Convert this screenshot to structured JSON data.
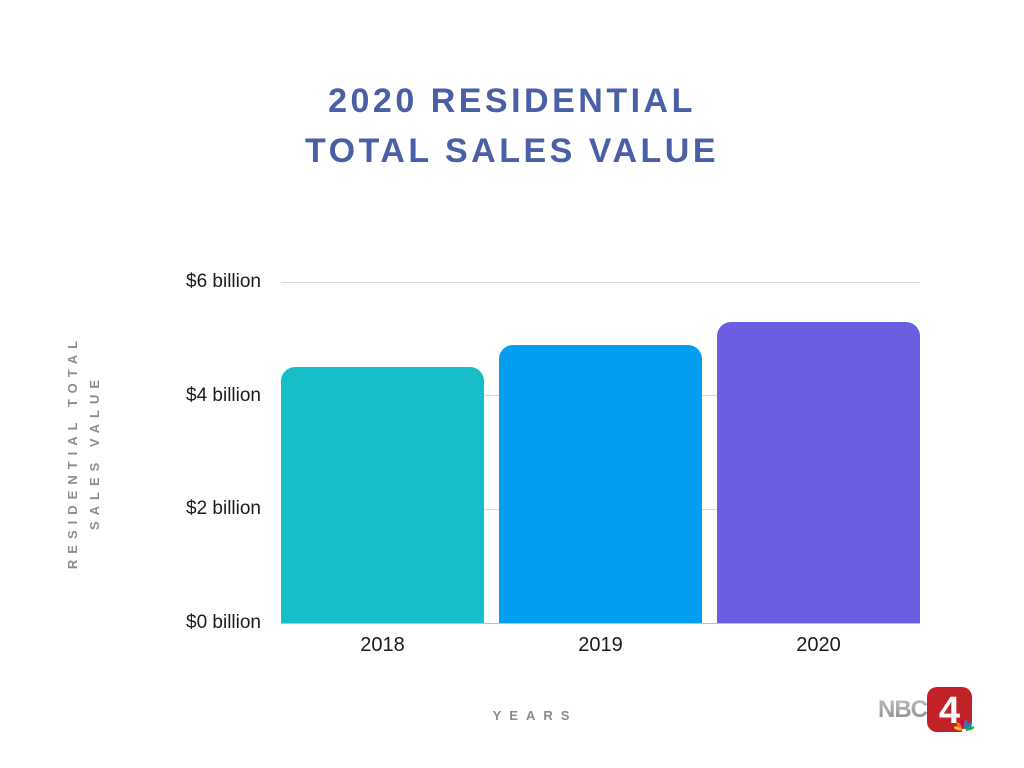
{
  "title": {
    "line1": "2020 RESIDENTIAL",
    "line2": "TOTAL SALES VALUE"
  },
  "y_axis_title": {
    "line1": "RESIDENTIAL TOTAL",
    "line2": "SALES VALUE"
  },
  "x_axis_title": "YEARS",
  "colors": {
    "title_color": "#4A5FA5",
    "axis_text": "#8C8C8C",
    "tick_text": "#1C1C1C",
    "gridline": "#D9D9D9",
    "baseline": "#C0C0C0"
  },
  "logo": {
    "station_text": "NBC",
    "channel_number": "4",
    "red": "#C32128",
    "gray_light": "#C2C2C2",
    "gray_dark": "#8A8A8A",
    "peacock_colors": [
      "#FDB913",
      "#F37021",
      "#CC004C",
      "#6460AA",
      "#0089D0",
      "#0DB14B"
    ]
  },
  "chart_data": {
    "type": "bar",
    "title": "2020 RESIDENTIAL TOTAL SALES VALUE",
    "xlabel": "YEARS",
    "ylabel": "RESIDENTIAL TOTAL SALES VALUE",
    "categories": [
      "2018",
      "2019",
      "2020"
    ],
    "values": [
      4.5,
      4.9,
      5.3
    ],
    "unit": "billion USD",
    "ylim": [
      0,
      6
    ],
    "yticks": [
      {
        "value": 6,
        "label": "$6 billion"
      },
      {
        "value": 4,
        "label": "$4 billion"
      },
      {
        "value": 2,
        "label": "$2 billion"
      },
      {
        "value": 0,
        "label": "$0 billion"
      }
    ],
    "bar_colors": [
      "#17BEC8",
      "#049EF1",
      "#6B5EE1"
    ],
    "grid": true,
    "legend": false
  }
}
